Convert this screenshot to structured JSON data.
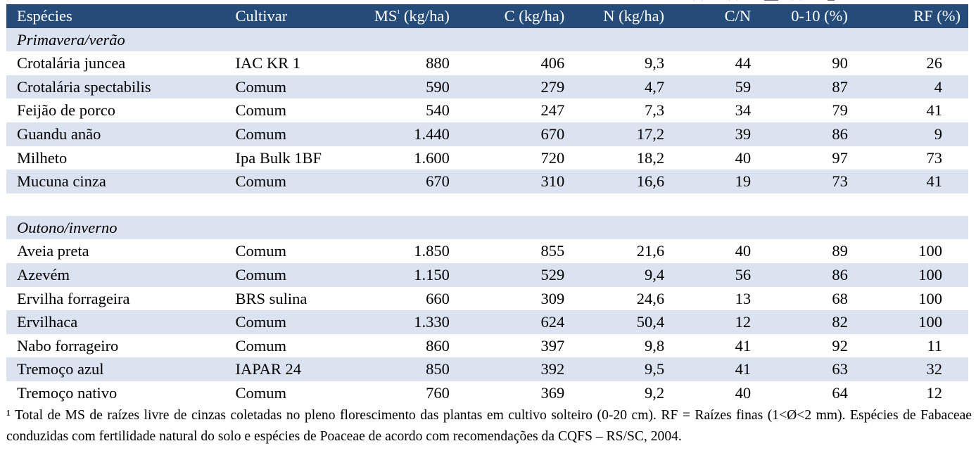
{
  "header": {
    "cols": [
      "Espécies",
      "Cultivar",
      "MS",
      "¹",
      " (kg/ha)",
      "C (kg/ha)",
      "N (kg/ha)",
      "C/N",
      "0-10 (%)",
      "RF (%)"
    ]
  },
  "sections": [
    {
      "title": "Primavera/verão",
      "rows": [
        {
          "especie": "Crotalária juncea",
          "cultivar": "IAC KR 1",
          "ms": "880",
          "c": "406",
          "n": "9,3",
          "cn": "44",
          "p010": "90",
          "rf": "26"
        },
        {
          "especie": "Crotalária spectabilis",
          "cultivar": "Comum",
          "ms": "590",
          "c": "279",
          "n": "4,7",
          "cn": "59",
          "p010": "87",
          "rf": "4"
        },
        {
          "especie": "Feijão de porco",
          "cultivar": "Comum",
          "ms": "540",
          "c": "247",
          "n": "7,3",
          "cn": "34",
          "p010": "79",
          "rf": "41"
        },
        {
          "especie": "Guandu anão",
          "cultivar": "Comum",
          "ms": "1.440",
          "c": "670",
          "n": "17,2",
          "cn": "39",
          "p010": "86",
          "rf": "9"
        },
        {
          "especie": "Milheto",
          "cultivar": "Ipa Bulk 1BF",
          "ms": "1.600",
          "c": "720",
          "n": "18,2",
          "cn": "40",
          "p010": "97",
          "rf": "73"
        },
        {
          "especie": "Mucuna cinza",
          "cultivar": "Comum",
          "ms": "670",
          "c": "310",
          "n": "16,6",
          "cn": "19",
          "p010": "73",
          "rf": "41"
        }
      ]
    },
    {
      "title": "Outono/inverno",
      "rows": [
        {
          "especie": "Aveia preta",
          "cultivar": "Comum",
          "ms": "1.850",
          "c": "855",
          "n": "21,6",
          "cn": "40",
          "p010": "89",
          "rf": "100"
        },
        {
          "especie": "Azevém",
          "cultivar": "Comum",
          "ms": "1.150",
          "c": "529",
          "n": "9,4",
          "cn": "56",
          "p010": "86",
          "rf": "100"
        },
        {
          "especie": "Ervilha forrageira",
          "cultivar": "BRS sulina",
          "ms": "660",
          "c": "309",
          "n": "24,6",
          "cn": "13",
          "p010": "68",
          "rf": "100"
        },
        {
          "especie": "Ervilhaca",
          "cultivar": "Comum",
          "ms": "1.330",
          "c": "624",
          "n": "50,4",
          "cn": "12",
          "p010": "82",
          "rf": "100"
        },
        {
          "especie": "Nabo forrageiro",
          "cultivar": "Comum",
          "ms": "860",
          "c": "397",
          "n": "9,8",
          "cn": "41",
          "p010": "92",
          "rf": "11"
        },
        {
          "especie": "Tremoço azul",
          "cultivar": "IAPAR 24",
          "ms": "850",
          "c": "392",
          "n": "9,5",
          "cn": "41",
          "p010": "63",
          "rf": "32"
        },
        {
          "especie": "Tremoço nativo",
          "cultivar": "Comum",
          "ms": "760",
          "c": "369",
          "n": "9,2",
          "cn": "40",
          "p010": "64",
          "rf": "12"
        }
      ]
    }
  ],
  "footnote": {
    "mark": "¹",
    "text": " Total de MS de raízes livre de cinzas coletadas no pleno florescimento das plantas em cultivo solteiro (0-20 cm). RF = Raízes finas (1<Ø<2 mm). Espécies de Fabaceae conduzidas com fertilidade natural do solo e espécies de Poaceae de acordo com recomendações da CQFS – RS/SC, 2004."
  },
  "colors": {
    "header_bg": "#254B78",
    "stripe": "#DBE3F1",
    "header_text": "#FFFFFF"
  }
}
